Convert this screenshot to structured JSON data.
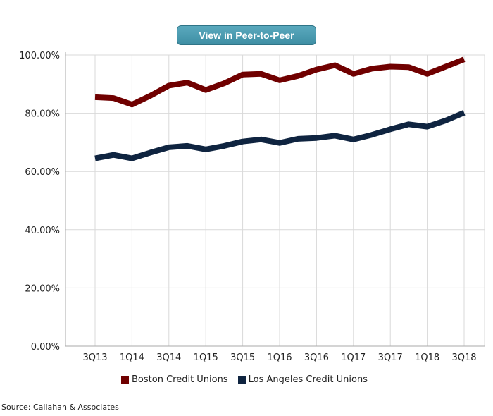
{
  "button": {
    "label": "View in Peer-to-Peer"
  },
  "source": "Source: Callahan & Associates",
  "colors": {
    "boston": "#700000",
    "la": "#0f2440",
    "grid": "#d9d9d9",
    "button": "#4a9bb1"
  },
  "chart_data": {
    "type": "line",
    "title": "",
    "xlabel": "",
    "ylabel": "",
    "ylim": [
      0,
      100
    ],
    "y_ticks": [
      0,
      20,
      40,
      60,
      80,
      100
    ],
    "y_tick_labels": [
      "0.00%",
      "20.00%",
      "40.00%",
      "60.00%",
      "80.00%",
      "100.00%"
    ],
    "grid": true,
    "legend": "bottom",
    "x": [
      "3Q13",
      "4Q13",
      "1Q14",
      "2Q14",
      "3Q14",
      "4Q14",
      "1Q15",
      "2Q15",
      "3Q15",
      "4Q15",
      "1Q16",
      "2Q16",
      "3Q16",
      "4Q16",
      "1Q17",
      "2Q17",
      "3Q17",
      "4Q17",
      "1Q18",
      "2Q18",
      "3Q18"
    ],
    "x_tick_labels": [
      "3Q13",
      "1Q14",
      "3Q14",
      "1Q15",
      "3Q15",
      "1Q16",
      "3Q16",
      "1Q17",
      "3Q17",
      "1Q18",
      "3Q18"
    ],
    "series": [
      {
        "name": "Boston Credit Unions",
        "values": [
          85.5,
          85.2,
          83.0,
          86.0,
          89.5,
          90.5,
          88.0,
          90.3,
          93.3,
          93.5,
          91.3,
          92.8,
          95.0,
          96.5,
          93.5,
          95.3,
          96.0,
          95.8,
          93.5,
          96.0,
          98.5
        ]
      },
      {
        "name": "Los Angeles Credit Unions",
        "values": [
          64.5,
          65.7,
          64.5,
          66.5,
          68.3,
          68.8,
          67.6,
          68.8,
          70.3,
          71.0,
          69.8,
          71.2,
          71.5,
          72.3,
          71.0,
          72.6,
          74.5,
          76.2,
          75.4,
          77.5,
          80.2
        ]
      }
    ]
  }
}
